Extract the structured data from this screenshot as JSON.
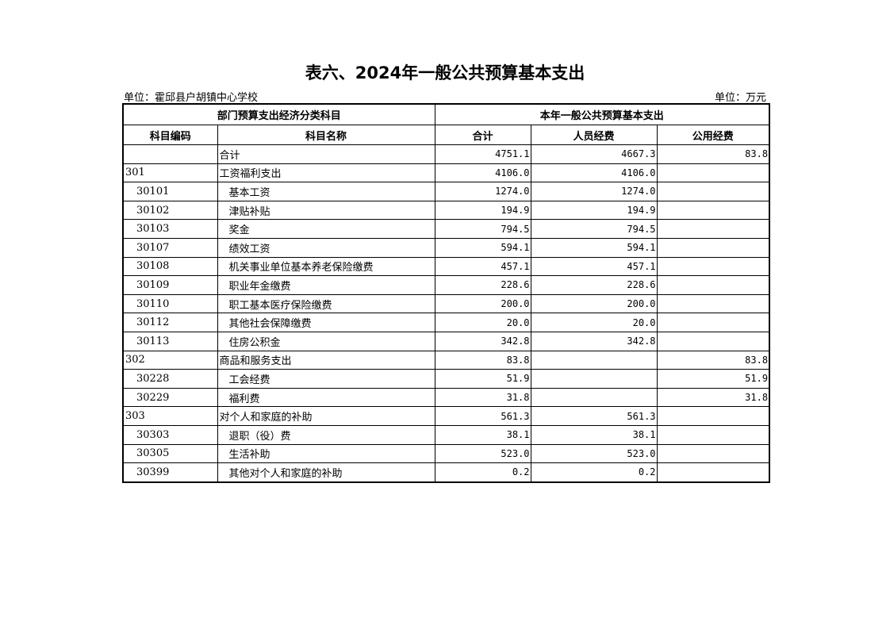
{
  "title": "表六、2024年一般公共预算基本支出",
  "unit_org": "单位：霍邱县户胡镇中心学校",
  "unit_money": "单位：万元",
  "header": {
    "group_left": "部门预算支出经济分类科目",
    "group_right": "本年一般公共预算基本支出",
    "code": "科目编码",
    "name": "科目名称",
    "total": "合计",
    "personnel": "人员经费",
    "public": "公用经费"
  },
  "rows": [
    {
      "code": "",
      "name": "合计",
      "total": "4751.1",
      "personnel": "4667.3",
      "public": "83.8",
      "level": 0
    },
    {
      "code": "301",
      "name": "工资福利支出",
      "total": "4106.0",
      "personnel": "4106.0",
      "public": "",
      "level": 0
    },
    {
      "code": "30101",
      "name": "基本工资",
      "total": "1274.0",
      "personnel": "1274.0",
      "public": "",
      "level": 1
    },
    {
      "code": "30102",
      "name": "津贴补贴",
      "total": "194.9",
      "personnel": "194.9",
      "public": "",
      "level": 1
    },
    {
      "code": "30103",
      "name": "奖金",
      "total": "794.5",
      "personnel": "794.5",
      "public": "",
      "level": 1
    },
    {
      "code": "30107",
      "name": "绩效工资",
      "total": "594.1",
      "personnel": "594.1",
      "public": "",
      "level": 1
    },
    {
      "code": "30108",
      "name": "机关事业单位基本养老保险缴费",
      "total": "457.1",
      "personnel": "457.1",
      "public": "",
      "level": 1
    },
    {
      "code": "30109",
      "name": "职业年金缴费",
      "total": "228.6",
      "personnel": "228.6",
      "public": "",
      "level": 1
    },
    {
      "code": "30110",
      "name": "职工基本医疗保险缴费",
      "total": "200.0",
      "personnel": "200.0",
      "public": "",
      "level": 1
    },
    {
      "code": "30112",
      "name": "其他社会保障缴费",
      "total": "20.0",
      "personnel": "20.0",
      "public": "",
      "level": 1
    },
    {
      "code": "30113",
      "name": "住房公积金",
      "total": "342.8",
      "personnel": "342.8",
      "public": "",
      "level": 1
    },
    {
      "code": "302",
      "name": "商品和服务支出",
      "total": "83.8",
      "personnel": "",
      "public": "83.8",
      "level": 0
    },
    {
      "code": "30228",
      "name": "工会经费",
      "total": "51.9",
      "personnel": "",
      "public": "51.9",
      "level": 1
    },
    {
      "code": "30229",
      "name": "福利费",
      "total": "31.8",
      "personnel": "",
      "public": "31.8",
      "level": 1
    },
    {
      "code": "303",
      "name": "对个人和家庭的补助",
      "total": "561.3",
      "personnel": "561.3",
      "public": "",
      "level": 0
    },
    {
      "code": "30303",
      "name": "退职（役）费",
      "total": "38.1",
      "personnel": "38.1",
      "public": "",
      "level": 1
    },
    {
      "code": "30305",
      "name": "生活补助",
      "total": "523.0",
      "personnel": "523.0",
      "public": "",
      "level": 1
    },
    {
      "code": "30399",
      "name": "其他对个人和家庭的补助",
      "total": "0.2",
      "personnel": "0.2",
      "public": "",
      "level": 1
    }
  ]
}
